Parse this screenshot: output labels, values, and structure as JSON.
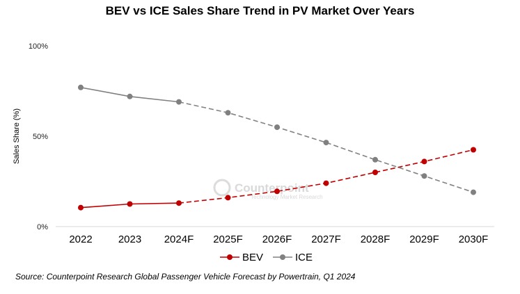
{
  "chart_data": {
    "type": "line",
    "title": "BEV vs ICE Sales Share Trend in PV Market Over Years",
    "ylabel": "Sales Share (%)",
    "xlabel": "",
    "categories": [
      "2022",
      "2023",
      "2024F",
      "2025F",
      "2026F",
      "2027F",
      "2028F",
      "2029F",
      "2030F"
    ],
    "y_ticks": [
      {
        "value": 0,
        "label": "0%"
      },
      {
        "value": 50,
        "label": "50%"
      },
      {
        "value": 100,
        "label": "100%"
      }
    ],
    "ylim": [
      0,
      100
    ],
    "actual_until_index": 2,
    "series": [
      {
        "name": "BEV",
        "color": "#c00000",
        "values": [
          10.5,
          12.5,
          13,
          16,
          19.5,
          24,
          30,
          36,
          42.5
        ]
      },
      {
        "name": "ICE",
        "color": "#808080",
        "values": [
          77,
          72,
          69,
          63,
          55,
          46.5,
          37,
          28,
          19
        ]
      }
    ],
    "legend_position": "bottom",
    "grid": false
  },
  "watermark": {
    "name": "Counterpoint",
    "sub": "Technology Market Research"
  },
  "source": "Source: Counterpoint Research Global Passenger Vehicle Forecast by Powertrain, Q1 2024"
}
